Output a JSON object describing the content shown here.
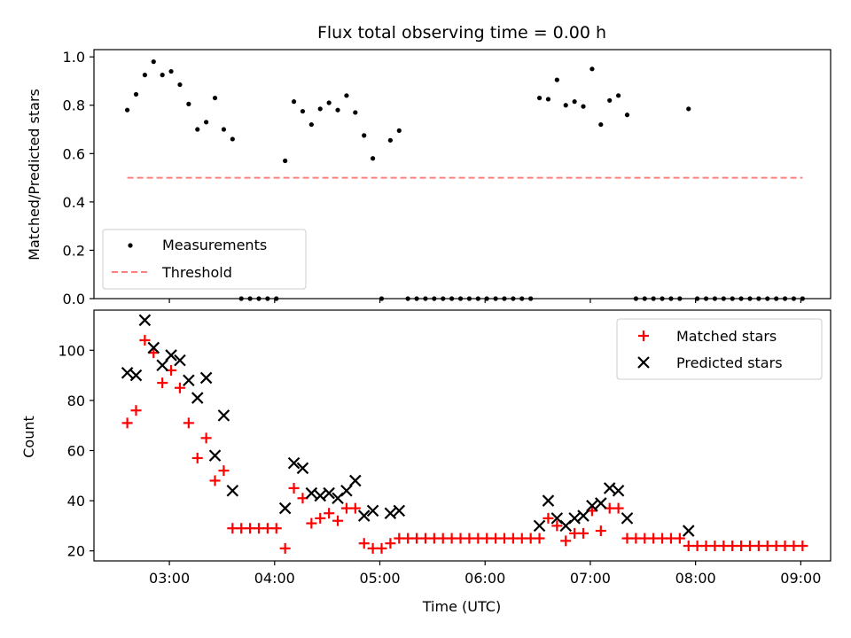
{
  "chart_data": [
    {
      "type": "scatter",
      "title": "Flux total observing time = 0.00 h",
      "xlabel": "",
      "ylabel": "Matched/Predicted stars",
      "xlim": [
        "02:17",
        "09:17"
      ],
      "ylim": [
        0,
        1.03
      ],
      "yticks": [
        "0.0",
        "0.2",
        "0.4",
        "0.6",
        "0.8",
        "1.0"
      ],
      "xtick_values": [
        "03:00",
        "04:00",
        "05:00",
        "06:00",
        "07:00",
        "08:00",
        "09:00"
      ],
      "legend": {
        "position": "lower-left",
        "entries": [
          "Measurements",
          "Threshold"
        ]
      },
      "series": [
        {
          "name": "Measurements",
          "marker": "dot",
          "color": "#000000",
          "points": [
            [
              "02:36",
              0.78
            ],
            [
              "02:41",
              0.845
            ],
            [
              "02:46",
              0.925
            ],
            [
              "02:51",
              0.98
            ],
            [
              "02:56",
              0.925
            ],
            [
              "03:01",
              0.94
            ],
            [
              "03:06",
              0.885
            ],
            [
              "03:11",
              0.805
            ],
            [
              "03:16",
              0.7
            ],
            [
              "03:21",
              0.73
            ],
            [
              "03:26",
              0.83
            ],
            [
              "03:31",
              0.7
            ],
            [
              "03:36",
              0.66
            ],
            [
              "03:41",
              0.0
            ],
            [
              "03:46",
              0.0
            ],
            [
              "03:51",
              0.0
            ],
            [
              "03:56",
              0.0
            ],
            [
              "04:01",
              0.0
            ],
            [
              "04:06",
              0.57
            ],
            [
              "04:11",
              0.815
            ],
            [
              "04:16",
              0.775
            ],
            [
              "04:21",
              0.72
            ],
            [
              "04:26",
              0.785
            ],
            [
              "04:31",
              0.81
            ],
            [
              "04:36",
              0.78
            ],
            [
              "04:41",
              0.84
            ],
            [
              "04:46",
              0.77
            ],
            [
              "04:51",
              0.675
            ],
            [
              "04:56",
              0.58
            ],
            [
              "05:01",
              0.0
            ],
            [
              "05:06",
              0.655
            ],
            [
              "05:11",
              0.695
            ],
            [
              "05:16",
              0.0
            ],
            [
              "05:21",
              0.0
            ],
            [
              "05:26",
              0.0
            ],
            [
              "05:31",
              0.0
            ],
            [
              "05:36",
              0.0
            ],
            [
              "05:41",
              0.0
            ],
            [
              "05:46",
              0.0
            ],
            [
              "05:51",
              0.0
            ],
            [
              "05:56",
              0.0
            ],
            [
              "06:01",
              0.0
            ],
            [
              "06:06",
              0.0
            ],
            [
              "06:11",
              0.0
            ],
            [
              "06:16",
              0.0
            ],
            [
              "06:21",
              0.0
            ],
            [
              "06:26",
              0.0
            ],
            [
              "06:31",
              0.83
            ],
            [
              "06:36",
              0.825
            ],
            [
              "06:41",
              0.905
            ],
            [
              "06:46",
              0.8
            ],
            [
              "06:51",
              0.815
            ],
            [
              "06:56",
              0.795
            ],
            [
              "07:01",
              0.95
            ],
            [
              "07:06",
              0.72
            ],
            [
              "07:11",
              0.82
            ],
            [
              "07:16",
              0.84
            ],
            [
              "07:21",
              0.76
            ],
            [
              "07:26",
              0.0
            ],
            [
              "07:31",
              0.0
            ],
            [
              "07:36",
              0.0
            ],
            [
              "07:41",
              0.0
            ],
            [
              "07:46",
              0.0
            ],
            [
              "07:51",
              0.0
            ],
            [
              "07:56",
              0.785
            ],
            [
              "08:01",
              0.0
            ],
            [
              "08:06",
              0.0
            ],
            [
              "08:11",
              0.0
            ],
            [
              "08:16",
              0.0
            ],
            [
              "08:21",
              0.0
            ],
            [
              "08:26",
              0.0
            ],
            [
              "08:31",
              0.0
            ],
            [
              "08:36",
              0.0
            ],
            [
              "08:41",
              0.0
            ],
            [
              "08:46",
              0.0
            ],
            [
              "08:51",
              0.0
            ],
            [
              "08:56",
              0.0
            ],
            [
              "09:01",
              0.0
            ]
          ]
        },
        {
          "name": "Threshold",
          "type": "line",
          "style": "dashed",
          "color": "#ff7f7f",
          "points": [
            [
              "02:36",
              0.5
            ],
            [
              "09:01",
              0.5
            ]
          ]
        }
      ]
    },
    {
      "type": "scatter",
      "xlabel": "Time (UTC)",
      "ylabel": "Count",
      "xlim": [
        "02:17",
        "09:17"
      ],
      "ylim": [
        16,
        116
      ],
      "yticks": [
        "20",
        "40",
        "60",
        "80",
        "100"
      ],
      "xticks": [
        "03:00",
        "04:00",
        "05:00",
        "06:00",
        "07:00",
        "08:00",
        "09:00"
      ],
      "legend": {
        "position": "upper-right",
        "entries": [
          "Matched stars",
          "Predicted stars"
        ]
      },
      "series": [
        {
          "name": "Matched stars",
          "marker": "plus",
          "color": "#ff0000",
          "points": [
            [
              "02:36",
              71
            ],
            [
              "02:41",
              76
            ],
            [
              "02:46",
              104
            ],
            [
              "02:51",
              99
            ],
            [
              "02:56",
              87
            ],
            [
              "03:01",
              92
            ],
            [
              "03:06",
              85
            ],
            [
              "03:11",
              71
            ],
            [
              "03:16",
              57
            ],
            [
              "03:21",
              65
            ],
            [
              "03:26",
              48
            ],
            [
              "03:31",
              52
            ],
            [
              "03:36",
              29
            ],
            [
              "03:41",
              29
            ],
            [
              "03:46",
              29
            ],
            [
              "03:51",
              29
            ],
            [
              "03:56",
              29
            ],
            [
              "04:01",
              29
            ],
            [
              "04:06",
              21
            ],
            [
              "04:11",
              45
            ],
            [
              "04:16",
              41
            ],
            [
              "04:21",
              31
            ],
            [
              "04:26",
              33
            ],
            [
              "04:31",
              35
            ],
            [
              "04:36",
              32
            ],
            [
              "04:41",
              37
            ],
            [
              "04:46",
              37
            ],
            [
              "04:51",
              23
            ],
            [
              "04:56",
              21
            ],
            [
              "05:01",
              21
            ],
            [
              "05:06",
              23
            ],
            [
              "05:11",
              25
            ],
            [
              "05:16",
              25
            ],
            [
              "05:21",
              25
            ],
            [
              "05:26",
              25
            ],
            [
              "05:31",
              25
            ],
            [
              "05:36",
              25
            ],
            [
              "05:41",
              25
            ],
            [
              "05:46",
              25
            ],
            [
              "05:51",
              25
            ],
            [
              "05:56",
              25
            ],
            [
              "06:01",
              25
            ],
            [
              "06:06",
              25
            ],
            [
              "06:11",
              25
            ],
            [
              "06:16",
              25
            ],
            [
              "06:21",
              25
            ],
            [
              "06:26",
              25
            ],
            [
              "06:31",
              25
            ],
            [
              "06:36",
              33
            ],
            [
              "06:41",
              30
            ],
            [
              "06:46",
              24
            ],
            [
              "06:51",
              27
            ],
            [
              "06:56",
              27
            ],
            [
              "07:01",
              36
            ],
            [
              "07:06",
              28
            ],
            [
              "07:11",
              37
            ],
            [
              "07:16",
              37
            ],
            [
              "07:21",
              25
            ],
            [
              "07:26",
              25
            ],
            [
              "07:31",
              25
            ],
            [
              "07:36",
              25
            ],
            [
              "07:41",
              25
            ],
            [
              "07:46",
              25
            ],
            [
              "07:51",
              25
            ],
            [
              "07:56",
              22
            ],
            [
              "08:01",
              22
            ],
            [
              "08:06",
              22
            ],
            [
              "08:11",
              22
            ],
            [
              "08:16",
              22
            ],
            [
              "08:21",
              22
            ],
            [
              "08:26",
              22
            ],
            [
              "08:31",
              22
            ],
            [
              "08:36",
              22
            ],
            [
              "08:41",
              22
            ],
            [
              "08:46",
              22
            ],
            [
              "08:51",
              22
            ],
            [
              "08:56",
              22
            ],
            [
              "09:01",
              22
            ]
          ]
        },
        {
          "name": "Predicted stars",
          "marker": "x",
          "color": "#000000",
          "points": [
            [
              "02:36",
              91
            ],
            [
              "02:41",
              90
            ],
            [
              "02:46",
              112
            ],
            [
              "02:51",
              101
            ],
            [
              "02:56",
              94
            ],
            [
              "03:01",
              98
            ],
            [
              "03:06",
              96
            ],
            [
              "03:11",
              88
            ],
            [
              "03:16",
              81
            ],
            [
              "03:21",
              89
            ],
            [
              "03:26",
              58
            ],
            [
              "03:31",
              74
            ],
            [
              "03:36",
              44
            ],
            [
              "04:06",
              37
            ],
            [
              "04:11",
              55
            ],
            [
              "04:16",
              53
            ],
            [
              "04:21",
              43
            ],
            [
              "04:26",
              42
            ],
            [
              "04:31",
              43
            ],
            [
              "04:36",
              41
            ],
            [
              "04:41",
              44
            ],
            [
              "04:46",
              48
            ],
            [
              "04:51",
              34
            ],
            [
              "04:56",
              36
            ],
            [
              "05:06",
              35
            ],
            [
              "05:11",
              36
            ],
            [
              "06:31",
              30
            ],
            [
              "06:36",
              40
            ],
            [
              "06:41",
              33
            ],
            [
              "06:46",
              30
            ],
            [
              "06:51",
              33
            ],
            [
              "06:56",
              34
            ],
            [
              "07:01",
              38
            ],
            [
              "07:06",
              39
            ],
            [
              "07:11",
              45
            ],
            [
              "07:16",
              44
            ],
            [
              "07:21",
              33
            ],
            [
              "07:56",
              28
            ]
          ]
        }
      ]
    }
  ]
}
